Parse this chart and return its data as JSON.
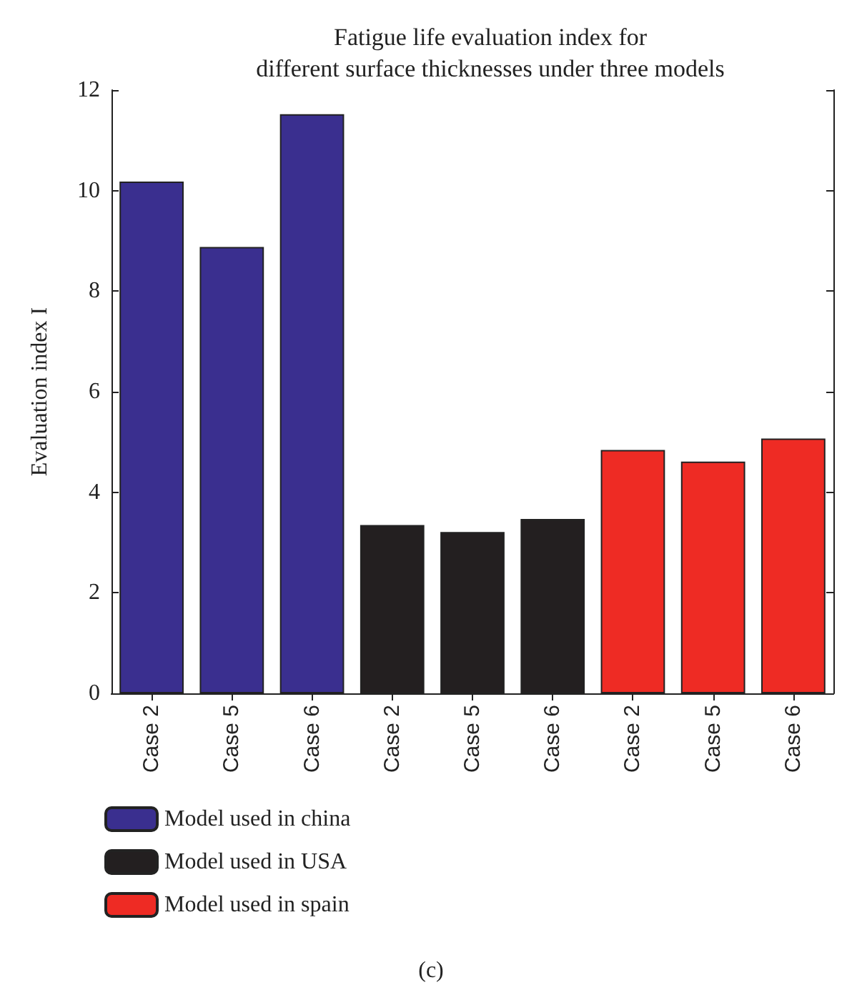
{
  "chart_data": {
    "type": "bar",
    "title": "Fatigue life evaluation index for\ndifferent surface thicknesses under three models",
    "ylabel": "Evaluation index I",
    "categories": [
      "Case 2",
      "Case 5",
      "Case 6",
      "Case 2",
      "Case 5",
      "Case 6",
      "Case 2",
      "Case 5",
      "Case 6"
    ],
    "series": [
      {
        "name": "Model used in china",
        "color": "#3a2f8f",
        "values": [
          10.18,
          8.88,
          11.52,
          null,
          null,
          null,
          null,
          null,
          null
        ]
      },
      {
        "name": "Model used in USA",
        "color": "#231f20",
        "values": [
          null,
          null,
          null,
          3.35,
          3.21,
          3.47,
          null,
          null,
          null
        ]
      },
      {
        "name": "Model used in spain",
        "color": "#ee2b24",
        "values": [
          null,
          null,
          null,
          null,
          null,
          null,
          4.84,
          4.61,
          5.07
        ]
      }
    ],
    "ylim": [
      0,
      12
    ],
    "yticks": [
      0,
      2,
      4,
      6,
      8,
      10,
      12
    ],
    "grid": false,
    "legend": "bottom left",
    "annotations": [
      "(c)"
    ]
  }
}
